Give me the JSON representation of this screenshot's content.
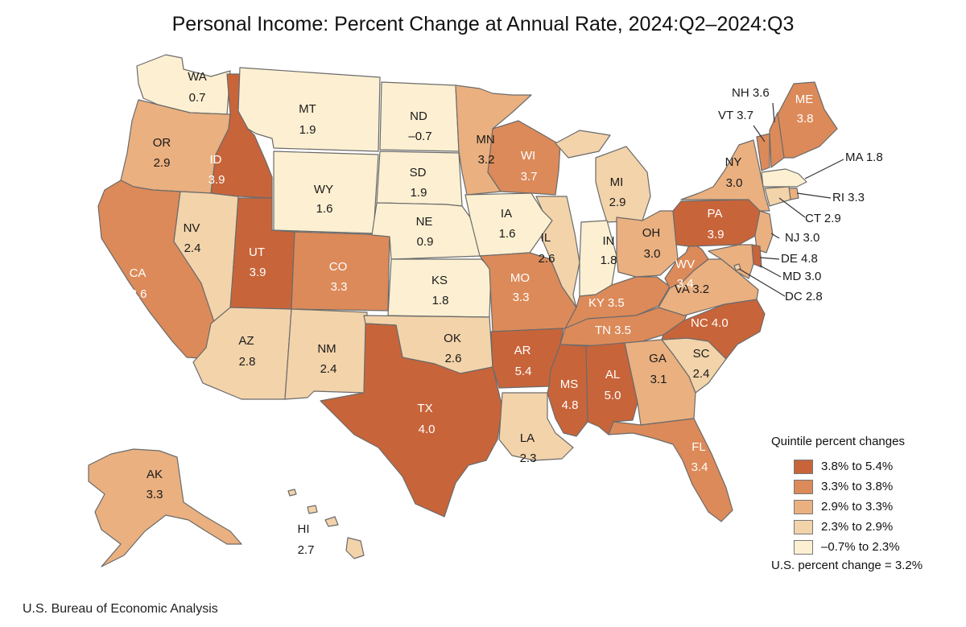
{
  "title": "Personal Income: Percent Change at Annual Rate, 2024:Q2–2024:Q3",
  "colors": {
    "q1": "#c8643a",
    "q2": "#dc8a59",
    "q3": "#eab080",
    "q4": "#f3d3aa",
    "q5": "#fdf0d2"
  },
  "states": [
    {
      "abbr": "WA",
      "value": "0.7",
      "quintile": "q5"
    },
    {
      "abbr": "OR",
      "value": "2.9",
      "quintile": "q3"
    },
    {
      "abbr": "CA",
      "value": "3.6",
      "quintile": "q2"
    },
    {
      "abbr": "NV",
      "value": "2.4",
      "quintile": "q4"
    },
    {
      "abbr": "ID",
      "value": "3.9",
      "quintile": "q1"
    },
    {
      "abbr": "MT",
      "value": "1.9",
      "quintile": "q5"
    },
    {
      "abbr": "WY",
      "value": "1.6",
      "quintile": "q5"
    },
    {
      "abbr": "UT",
      "value": "3.9",
      "quintile": "q1"
    },
    {
      "abbr": "AZ",
      "value": "2.8",
      "quintile": "q4"
    },
    {
      "abbr": "CO",
      "value": "3.3",
      "quintile": "q2"
    },
    {
      "abbr": "NM",
      "value": "2.4",
      "quintile": "q4"
    },
    {
      "abbr": "ND",
      "value": "–0.7",
      "quintile": "q5"
    },
    {
      "abbr": "SD",
      "value": "1.9",
      "quintile": "q5"
    },
    {
      "abbr": "NE",
      "value": "0.9",
      "quintile": "q5"
    },
    {
      "abbr": "KS",
      "value": "1.8",
      "quintile": "q5"
    },
    {
      "abbr": "OK",
      "value": "2.6",
      "quintile": "q4"
    },
    {
      "abbr": "TX",
      "value": "4.0",
      "quintile": "q1"
    },
    {
      "abbr": "MN",
      "value": "3.2",
      "quintile": "q3"
    },
    {
      "abbr": "IA",
      "value": "1.6",
      "quintile": "q5"
    },
    {
      "abbr": "MO",
      "value": "3.3",
      "quintile": "q2"
    },
    {
      "abbr": "AR",
      "value": "5.4",
      "quintile": "q1"
    },
    {
      "abbr": "LA",
      "value": "2.3",
      "quintile": "q4"
    },
    {
      "abbr": "WI",
      "value": "3.7",
      "quintile": "q2"
    },
    {
      "abbr": "IL",
      "value": "2.6",
      "quintile": "q4"
    },
    {
      "abbr": "MI",
      "value": "2.9",
      "quintile": "q4"
    },
    {
      "abbr": "IN",
      "value": "1.8",
      "quintile": "q5"
    },
    {
      "abbr": "OH",
      "value": "3.0",
      "quintile": "q3"
    },
    {
      "abbr": "KY",
      "value": "3.5",
      "quintile": "q2"
    },
    {
      "abbr": "TN",
      "value": "3.5",
      "quintile": "q2"
    },
    {
      "abbr": "MS",
      "value": "4.8",
      "quintile": "q1"
    },
    {
      "abbr": "AL",
      "value": "5.0",
      "quintile": "q1"
    },
    {
      "abbr": "GA",
      "value": "3.1",
      "quintile": "q3"
    },
    {
      "abbr": "FL",
      "value": "3.4",
      "quintile": "q2"
    },
    {
      "abbr": "SC",
      "value": "2.4",
      "quintile": "q4"
    },
    {
      "abbr": "NC",
      "value": "4.0",
      "quintile": "q1"
    },
    {
      "abbr": "VA",
      "value": "3.2",
      "quintile": "q3"
    },
    {
      "abbr": "WV",
      "value": "3.4",
      "quintile": "q2"
    },
    {
      "abbr": "PA",
      "value": "3.9",
      "quintile": "q1"
    },
    {
      "abbr": "NY",
      "value": "3.0",
      "quintile": "q3"
    },
    {
      "abbr": "ME",
      "value": "3.8",
      "quintile": "q2"
    },
    {
      "abbr": "NH",
      "value": "3.6",
      "quintile": "q2"
    },
    {
      "abbr": "VT",
      "value": "3.7",
      "quintile": "q2"
    },
    {
      "abbr": "MA",
      "value": "1.8",
      "quintile": "q5"
    },
    {
      "abbr": "RI",
      "value": "3.3",
      "quintile": "q3"
    },
    {
      "abbr": "CT",
      "value": "2.9",
      "quintile": "q4"
    },
    {
      "abbr": "NJ",
      "value": "3.0",
      "quintile": "q3"
    },
    {
      "abbr": "DE",
      "value": "4.8",
      "quintile": "q1"
    },
    {
      "abbr": "MD",
      "value": "3.0",
      "quintile": "q3"
    },
    {
      "abbr": "DC",
      "value": "2.8",
      "quintile": "q4"
    },
    {
      "abbr": "AK",
      "value": "3.3",
      "quintile": "q3"
    },
    {
      "abbr": "HI",
      "value": "2.7",
      "quintile": "q4"
    }
  ],
  "legend": {
    "title": "Quintile percent changes",
    "items": [
      {
        "label": "3.8% to 5.4%",
        "color": "#c8643a"
      },
      {
        "label": "3.3% to 3.8%",
        "color": "#dc8a59"
      },
      {
        "label": "2.9% to 3.3%",
        "color": "#eab080"
      },
      {
        "label": "2.3% to 2.9%",
        "color": "#f3d3aa"
      },
      {
        "label": "–0.7% to 2.3%",
        "color": "#fdf0d2"
      }
    ],
    "note": "U.S. percent change = 3.2%"
  },
  "source": "U.S. Bureau of Economic Analysis"
}
